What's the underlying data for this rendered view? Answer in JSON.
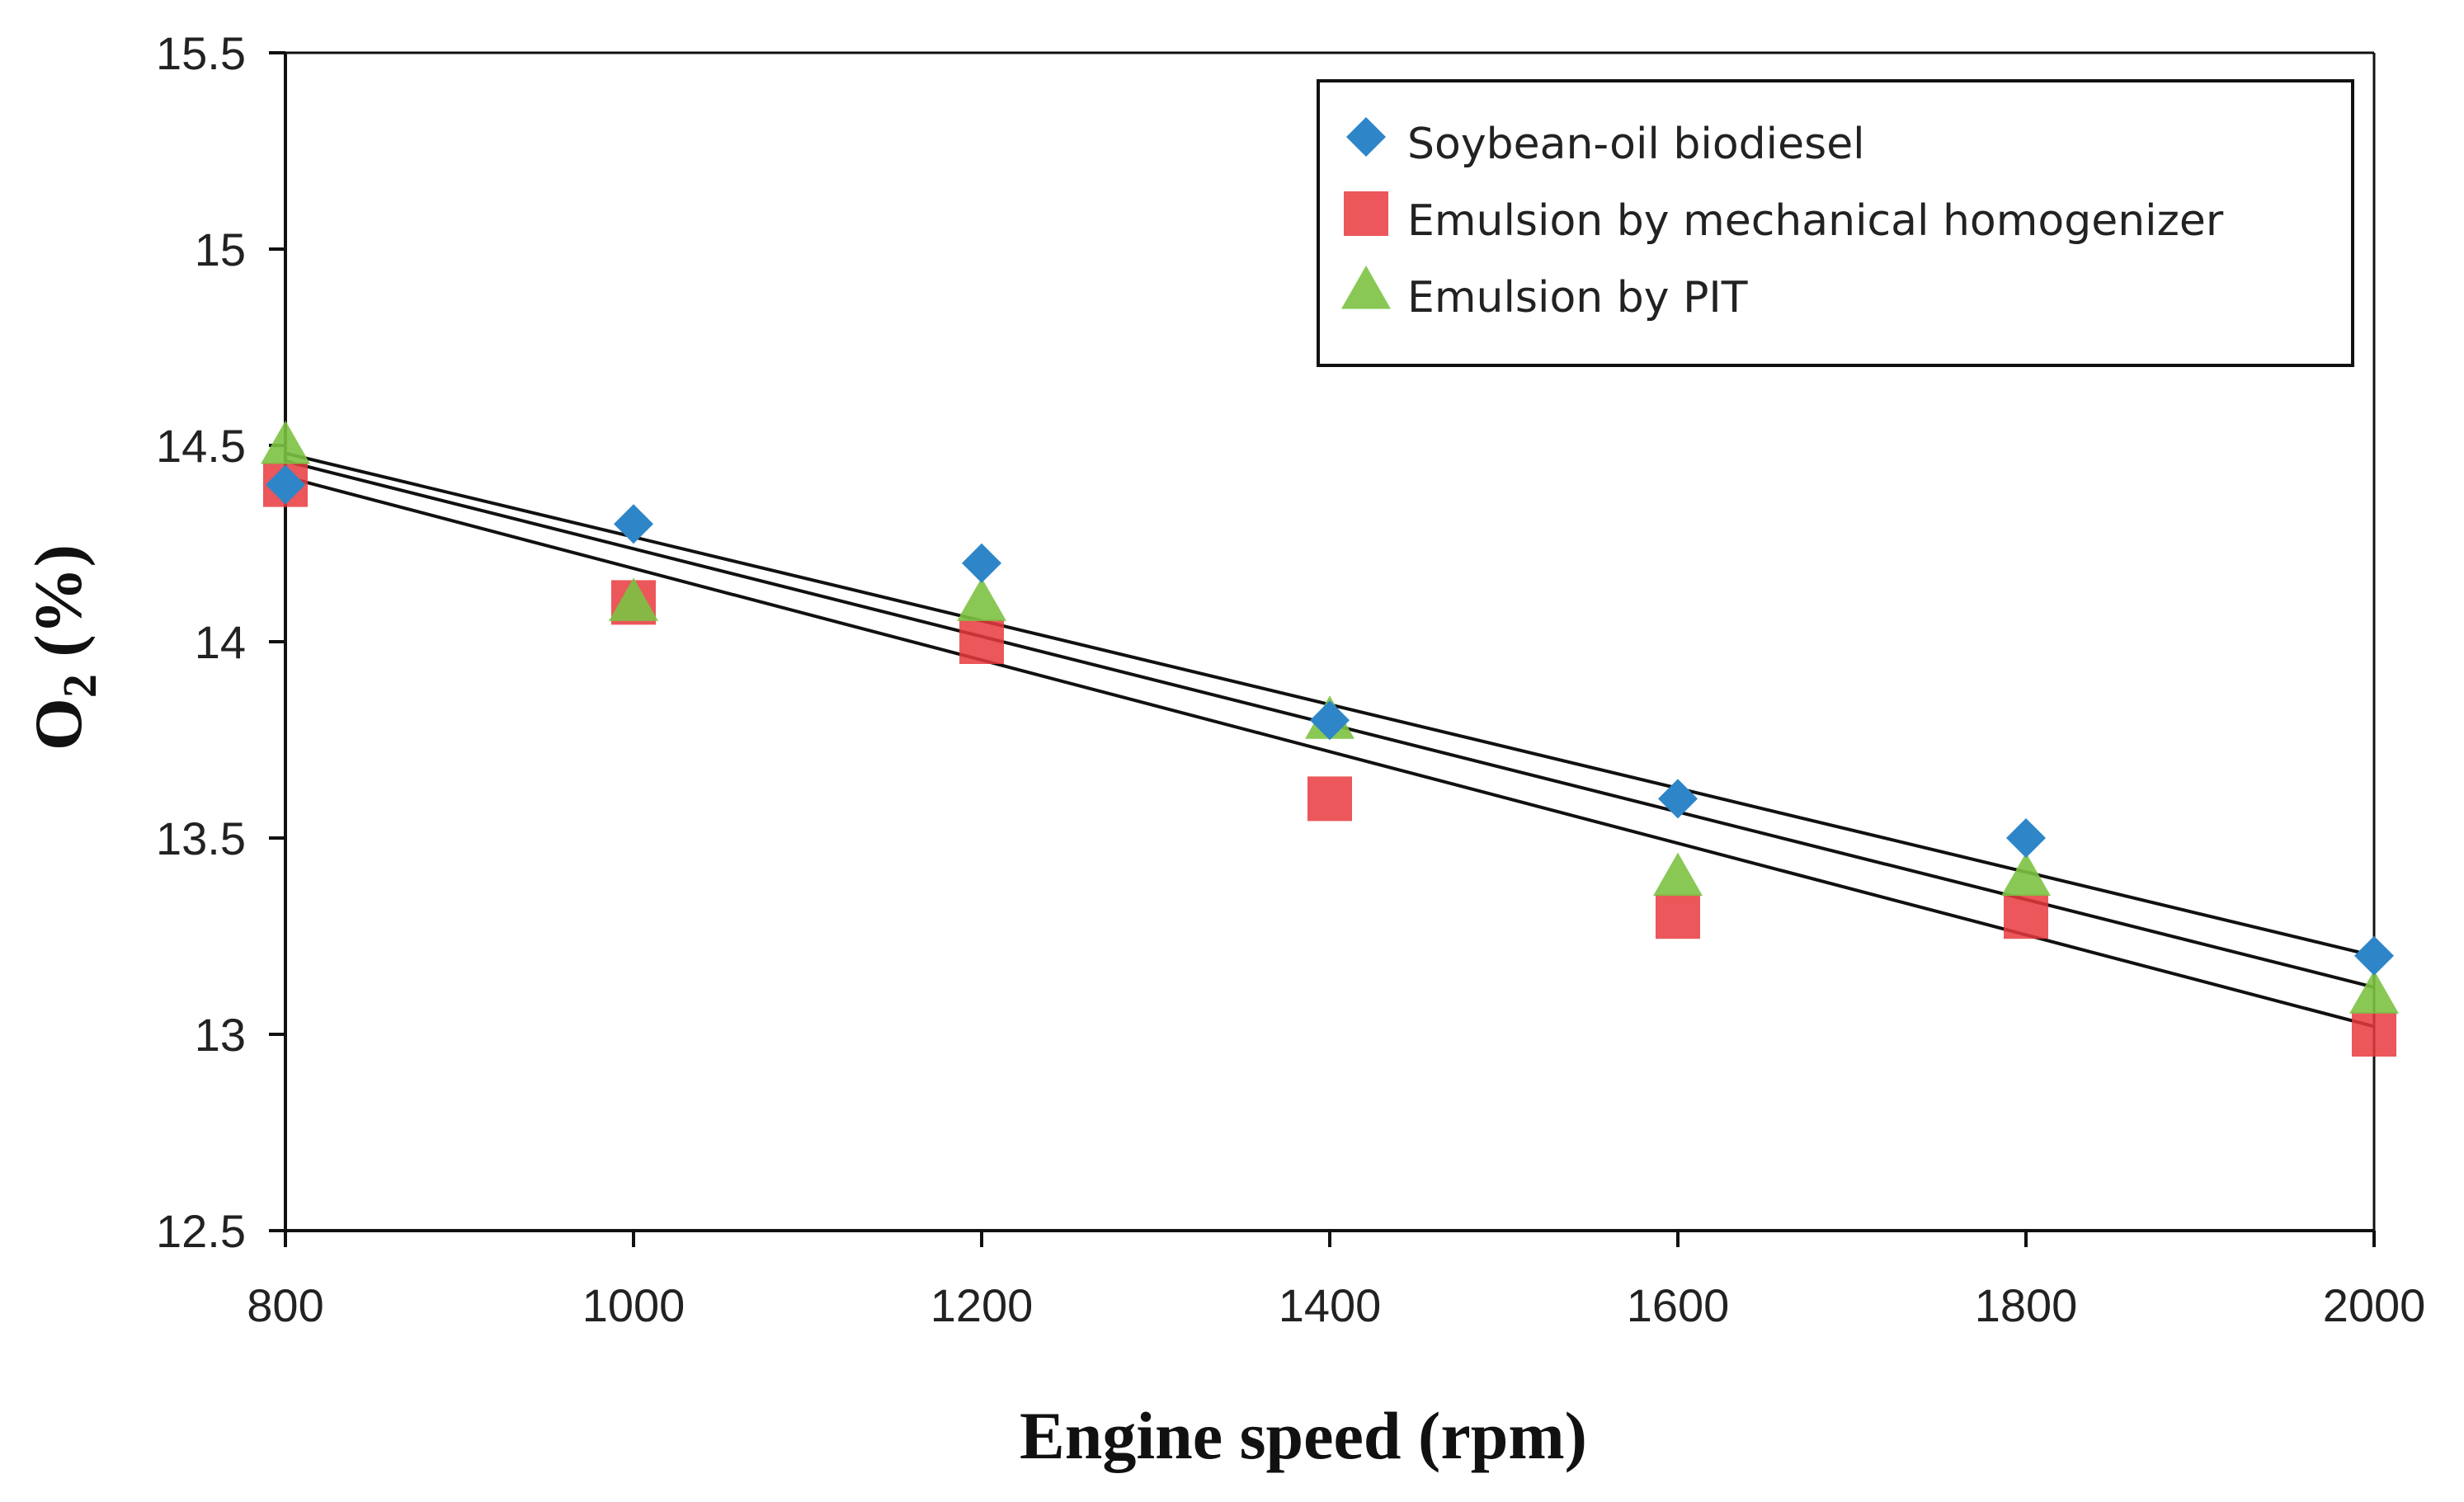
{
  "chart_data": {
    "type": "scatter",
    "title": "",
    "xlabel": "Engine speed (rpm)",
    "ylabel_main": "O",
    "ylabel_sub": "2",
    "ylabel_tail": " (%)",
    "x": [
      800,
      1000,
      1200,
      1400,
      1600,
      1800,
      2000
    ],
    "xlim": [
      800,
      2000
    ],
    "ylim": [
      12.5,
      15.5
    ],
    "xticks": [
      "800",
      "1000",
      "1200",
      "1400",
      "1600",
      "1800",
      "2000"
    ],
    "yticks": [
      "12.5",
      "13",
      "13.5",
      "14",
      "14.5",
      "15",
      "15.5"
    ],
    "grid": false,
    "legend_position": "top-right",
    "series": [
      {
        "name": "Soybean-oil biodiesel",
        "marker": "diamond",
        "color": "#2E86C8",
        "values": [
          14.4,
          14.3,
          14.2,
          13.8,
          13.6,
          13.5,
          13.2
        ],
        "trendline": [
          14.48,
          13.2
        ]
      },
      {
        "name": "Emulsion by mechanical homogenizer",
        "marker": "square",
        "color": "#E8393D",
        "values": [
          14.4,
          14.1,
          14.0,
          13.6,
          13.3,
          13.3,
          13.0
        ],
        "trendline": [
          14.42,
          13.02
        ]
      },
      {
        "name": "Emulsion by PIT",
        "marker": "triangle",
        "color": "#7CC242",
        "values": [
          14.5,
          14.1,
          14.1,
          13.8,
          13.4,
          13.4,
          13.1
        ],
        "trendline": [
          14.46,
          13.12
        ]
      }
    ]
  }
}
